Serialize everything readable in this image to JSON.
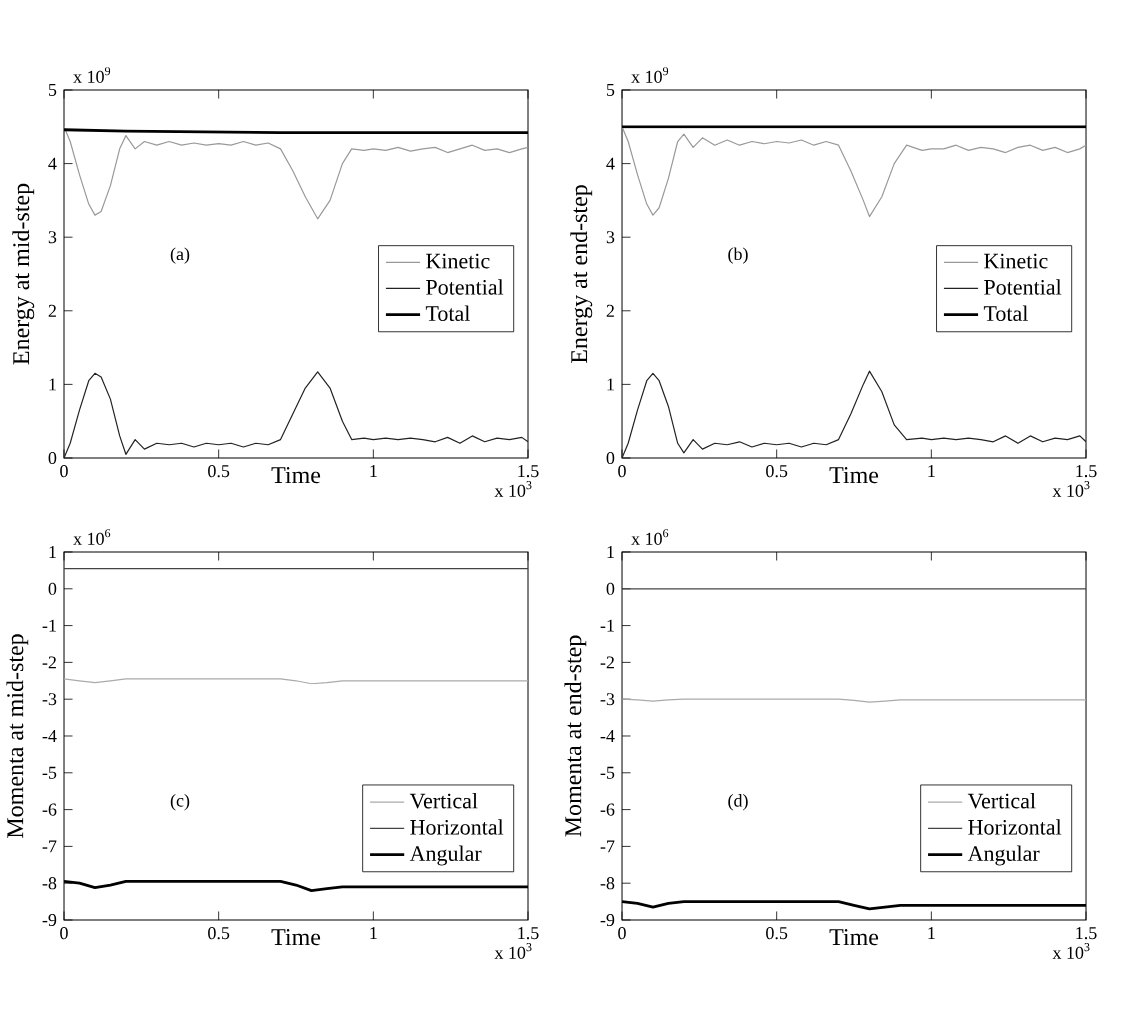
{
  "chart_data": [
    {
      "type": "line",
      "xlabel": "Time",
      "ylabel": "Energy at mid-step",
      "legend": "right",
      "xlim": [
        0,
        1.5
      ],
      "xticks": [
        0,
        0.5,
        1,
        1.5
      ],
      "ylim": [
        0,
        5
      ],
      "yticks": [
        0,
        1,
        2,
        3,
        4,
        5
      ],
      "annotations": [
        "(a)",
        "x 10$^{9}$",
        "x 10$^{3}$"
      ],
      "x": [
        0,
        0.02,
        0.05,
        0.08,
        0.1,
        0.12,
        0.15,
        0.18,
        0.2,
        0.23,
        0.26,
        0.3,
        0.34,
        0.38,
        0.42,
        0.46,
        0.5,
        0.54,
        0.58,
        0.62,
        0.66,
        0.7,
        0.74,
        0.78,
        0.82,
        0.86,
        0.9,
        0.93,
        0.97,
        1.0,
        1.04,
        1.08,
        1.12,
        1.16,
        1.2,
        1.24,
        1.28,
        1.32,
        1.36,
        1.4,
        1.44,
        1.48,
        1.5
      ],
      "series": [
        {
          "name": "Kinetic",
          "color": "#999999",
          "values": [
            4.5,
            4.3,
            3.85,
            3.45,
            3.3,
            3.35,
            3.7,
            4.2,
            4.38,
            4.2,
            4.3,
            4.25,
            4.3,
            4.25,
            4.28,
            4.25,
            4.27,
            4.25,
            4.3,
            4.25,
            4.28,
            4.2,
            3.9,
            3.55,
            3.25,
            3.5,
            4.0,
            4.2,
            4.18,
            4.2,
            4.18,
            4.22,
            4.17,
            4.2,
            4.22,
            4.15,
            4.2,
            4.25,
            4.18,
            4.2,
            4.15,
            4.2,
            4.22
          ]
        },
        {
          "name": "Potential",
          "color": "#222222",
          "values": [
            0,
            0.2,
            0.65,
            1.05,
            1.15,
            1.1,
            0.8,
            0.3,
            0.05,
            0.25,
            0.12,
            0.2,
            0.18,
            0.2,
            0.15,
            0.2,
            0.18,
            0.2,
            0.15,
            0.2,
            0.18,
            0.25,
            0.6,
            0.95,
            1.17,
            0.95,
            0.5,
            0.25,
            0.27,
            0.25,
            0.27,
            0.25,
            0.27,
            0.25,
            0.22,
            0.28,
            0.2,
            0.3,
            0.22,
            0.27,
            0.25,
            0.28,
            0.22
          ]
        },
        {
          "name": "Total",
          "color": "#000000",
          "x": [
            0,
            0.2,
            0.7,
            1.5
          ],
          "values": [
            4.46,
            4.44,
            4.42,
            4.42
          ]
        }
      ]
    },
    {
      "type": "line",
      "xlabel": "Time",
      "ylabel": "Energy at end-step",
      "legend": "right",
      "xlim": [
        0,
        1.5
      ],
      "xticks": [
        0,
        0.5,
        1,
        1.5
      ],
      "ylim": [
        0,
        5
      ],
      "yticks": [
        0,
        1,
        2,
        3,
        4,
        5
      ],
      "annotations": [
        "(b)",
        "x 10$^{9}$",
        "x 10$^{3}$"
      ],
      "x": [
        0,
        0.02,
        0.05,
        0.08,
        0.1,
        0.12,
        0.15,
        0.18,
        0.2,
        0.23,
        0.26,
        0.3,
        0.34,
        0.38,
        0.42,
        0.46,
        0.5,
        0.54,
        0.58,
        0.62,
        0.66,
        0.7,
        0.74,
        0.78,
        0.8,
        0.84,
        0.88,
        0.92,
        0.97,
        1.0,
        1.04,
        1.08,
        1.12,
        1.16,
        1.2,
        1.24,
        1.28,
        1.32,
        1.36,
        1.4,
        1.44,
        1.48,
        1.5
      ],
      "series": [
        {
          "name": "Kinetic",
          "color": "#999999",
          "values": [
            4.5,
            4.3,
            3.85,
            3.45,
            3.3,
            3.4,
            3.8,
            4.3,
            4.4,
            4.22,
            4.35,
            4.25,
            4.32,
            4.25,
            4.3,
            4.27,
            4.3,
            4.28,
            4.32,
            4.25,
            4.3,
            4.25,
            3.9,
            3.5,
            3.28,
            3.55,
            4.0,
            4.25,
            4.18,
            4.2,
            4.2,
            4.25,
            4.18,
            4.22,
            4.2,
            4.15,
            4.22,
            4.25,
            4.18,
            4.22,
            4.15,
            4.2,
            4.25
          ]
        },
        {
          "name": "Potential",
          "color": "#222222",
          "values": [
            0,
            0.2,
            0.65,
            1.05,
            1.15,
            1.05,
            0.7,
            0.2,
            0.07,
            0.25,
            0.12,
            0.2,
            0.18,
            0.22,
            0.15,
            0.2,
            0.18,
            0.2,
            0.15,
            0.2,
            0.18,
            0.25,
            0.6,
            1.0,
            1.18,
            0.9,
            0.45,
            0.25,
            0.27,
            0.25,
            0.27,
            0.25,
            0.27,
            0.25,
            0.22,
            0.3,
            0.2,
            0.3,
            0.22,
            0.27,
            0.25,
            0.3,
            0.22
          ]
        },
        {
          "name": "Total",
          "color": "#000000",
          "x": [
            0,
            1.5
          ],
          "values": [
            4.5,
            4.5
          ]
        }
      ]
    },
    {
      "type": "line",
      "xlabel": "Time",
      "ylabel": "Momenta at mid-step",
      "legend": "bottom right",
      "xlim": [
        0,
        1.5
      ],
      "xticks": [
        0,
        0.5,
        1,
        1.5
      ],
      "ylim": [
        -9,
        1
      ],
      "yticks": [
        -9,
        -8,
        -7,
        -6,
        -5,
        -4,
        -3,
        -2,
        -1,
        0,
        1
      ],
      "annotations": [
        "(c)",
        "x 10$^{6}$",
        "x 10$^{3}$"
      ],
      "x": [
        0,
        0.05,
        0.1,
        0.15,
        0.2,
        0.7,
        0.75,
        0.8,
        0.85,
        0.9,
        1.5
      ],
      "series": [
        {
          "name": "Vertical",
          "color": "#aaaaaa",
          "values": [
            -2.45,
            -2.5,
            -2.55,
            -2.5,
            -2.45,
            -2.45,
            -2.5,
            -2.58,
            -2.55,
            -2.5,
            -2.5
          ]
        },
        {
          "name": "Horizontal",
          "color": "#444444",
          "x": [
            0,
            1.5
          ],
          "values": [
            0.55,
            0.55
          ]
        },
        {
          "name": "Angular",
          "color": "#000000",
          "values": [
            -7.95,
            -8.0,
            -8.12,
            -8.05,
            -7.95,
            -7.95,
            -8.05,
            -8.2,
            -8.15,
            -8.1,
            -8.1
          ]
        }
      ]
    },
    {
      "type": "line",
      "xlabel": "Time",
      "ylabel": "Momenta at end-step",
      "legend": "bottom right",
      "xlim": [
        0,
        1.5
      ],
      "xticks": [
        0,
        0.5,
        1,
        1.5
      ],
      "ylim": [
        -9,
        1
      ],
      "yticks": [
        -9,
        -8,
        -7,
        -6,
        -5,
        -4,
        -3,
        -2,
        -1,
        0,
        1
      ],
      "annotations": [
        "(d)",
        "x 10$^{6}$",
        "x 10$^{3}$"
      ],
      "x": [
        0,
        0.05,
        0.1,
        0.15,
        0.2,
        0.7,
        0.75,
        0.8,
        0.85,
        0.9,
        1.5
      ],
      "series": [
        {
          "name": "Vertical",
          "color": "#aaaaaa",
          "values": [
            -3.0,
            -3.02,
            -3.05,
            -3.02,
            -3.0,
            -3.0,
            -3.03,
            -3.08,
            -3.05,
            -3.02,
            -3.02
          ]
        },
        {
          "name": "Horizontal",
          "color": "#444444",
          "x": [
            0,
            1.5
          ],
          "values": [
            0,
            0
          ]
        },
        {
          "name": "Angular",
          "color": "#000000",
          "values": [
            -8.5,
            -8.55,
            -8.65,
            -8.55,
            -8.5,
            -8.5,
            -8.6,
            -8.7,
            -8.65,
            -8.6,
            -8.6
          ]
        }
      ]
    }
  ]
}
